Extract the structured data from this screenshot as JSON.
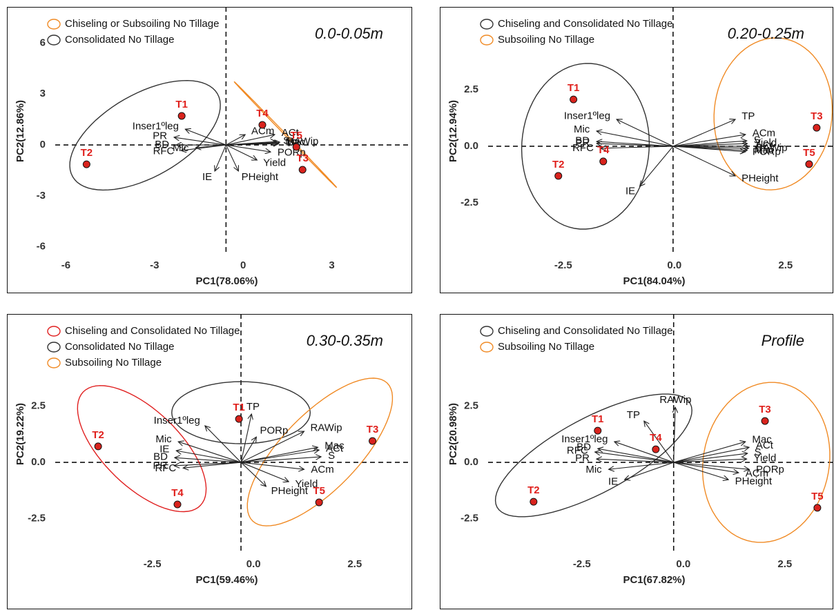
{
  "chart_data": [
    {
      "type": "biplot",
      "subtitle": "0.0-0.05m",
      "x_label": "PC1(78.06%)",
      "y_label": "PC2(12.86%)",
      "xlim": [
        -6.36,
        5.72
      ],
      "ylim": [
        -6.5,
        8.13
      ],
      "xticks": [
        -6,
        -3,
        0,
        3
      ],
      "yticks": [
        -6,
        -3,
        0,
        3,
        6
      ],
      "reference_lines": {
        "x": -0.58,
        "y": 0
      },
      "points": {
        "color": "#d9231d",
        "labels": [
          "T1",
          "T2",
          "T3",
          "T4",
          "T5"
        ],
        "x": [
          -2.08,
          -5.3,
          2.01,
          0.65,
          1.8
        ],
        "y": [
          1.71,
          -1.14,
          -1.46,
          1.18,
          -0.12
        ]
      },
      "vectors": {
        "labels": [
          "Inser1ºleg",
          "PR",
          "BD",
          "RFC",
          "Mic",
          "IE",
          "ACm",
          "ACt",
          "S",
          "Mac",
          "TP",
          "RAWip",
          "PORp",
          "Yield",
          "PHeight"
        ],
        "x": [
          -1.96,
          -2.34,
          -2.27,
          -2.1,
          -1.61,
          -0.96,
          0.07,
          1.07,
          1.12,
          1.19,
          1.21,
          1.24,
          0.93,
          0.47,
          -0.16
        ],
        "y": [
          0.93,
          0.45,
          0,
          -0.33,
          -0.16,
          -1.54,
          0.61,
          0.61,
          0.2,
          0.12,
          0.08,
          0.16,
          -0.41,
          -0.89,
          -1.54
        ]
      },
      "groups": [
        {
          "name": "Chiseling or Subsoiling No Tillage",
          "color": "#f08a24",
          "center": [
            1.43,
            0.61
          ],
          "axis1": [
            1.52,
            -2.76
          ],
          "axis2": [
            -0.82,
            1.42
          ]
        },
        {
          "name": "Consolidated No Tillage",
          "color": "#333333",
          "center": [
            -3.32,
            0.57
          ],
          "axis1": [
            2.45,
            2.44
          ],
          "axis2": [
            0.7,
            -2.11
          ]
        }
      ]
    },
    {
      "type": "biplot",
      "subtitle": "0.20-0.25m",
      "x_label": "PC1(84.04%)",
      "y_label": "PC2(12.94%)",
      "xlim": [
        -4.19,
        3.59
      ],
      "ylim": [
        -4.82,
        6.16
      ],
      "xticks": [
        -2.5,
        {
          "value": 0,
          "label": "0.0"
        },
        2.5
      ],
      "yticks": [
        -2.5,
        {
          "value": 0,
          "label": "0.0"
        },
        2.5
      ],
      "reference_lines": {
        "x": -0.03,
        "y": 0
      },
      "points": {
        "color": "#d9231d",
        "labels": [
          "T1",
          "T2",
          "T3",
          "T4",
          "T5"
        ],
        "x": [
          -2.27,
          -2.61,
          3.2,
          -1.6,
          3.03
        ],
        "y": [
          2.07,
          -1.31,
          0.82,
          -0.67,
          -0.79
        ]
      },
      "vectors": {
        "labels": [
          "Inser1ºleg",
          "Mic",
          "BD",
          "PR",
          "RFC",
          "IE",
          "TP",
          "ACm",
          "S",
          "Yield",
          "ACt",
          "RAWip",
          "PORp",
          "Mac",
          "PHeight"
        ],
        "x": [
          -1.3,
          -1.75,
          -1.75,
          -1.75,
          -1.66,
          -0.78,
          1.37,
          1.6,
          1.63,
          1.64,
          1.67,
          1.67,
          1.6,
          1.64,
          1.37
        ],
        "y": [
          1.19,
          0.67,
          0.21,
          0.12,
          -0.09,
          -1.77,
          1.19,
          0.52,
          0.24,
          0.12,
          0,
          -0.09,
          -0.24,
          -0.18,
          -1.31
        ]
      },
      "groups": [
        {
          "name": "Chiseling and Consolidated No Tillage",
          "color": "#333333",
          "center": [
            -2.0,
            0
          ],
          "axis1": [
            0.12,
            3.66
          ],
          "axis2": [
            1.43,
            -0.18
          ]
        },
        {
          "name": "Subsoiling No Tillage",
          "color": "#f08a24",
          "center": [
            2.22,
            1.43
          ],
          "axis1": [
            0.16,
            3.35
          ],
          "axis2": [
            1.32,
            -0.24
          ]
        }
      ]
    },
    {
      "type": "biplot",
      "subtitle": "0.30-0.35m",
      "x_label": "PC1(59.46%)",
      "y_label": "PC2(19.22%)",
      "xlim": [
        -4.9,
        3.92
      ],
      "ylim": [
        -4.08,
        6.6
      ],
      "xticks": [
        -2.5,
        {
          "value": 0,
          "label": "0.0"
        },
        2.5
      ],
      "yticks": [
        -2.5,
        {
          "value": 0,
          "label": "0.0"
        },
        2.5
      ],
      "reference_lines": {
        "x": -0.31,
        "y": 0
      },
      "points": {
        "color": "#d9231d",
        "labels": [
          "T1",
          "T2",
          "T3",
          "T4",
          "T5"
        ],
        "x": [
          -0.36,
          -3.84,
          2.94,
          -1.88,
          1.62
        ],
        "y": [
          1.93,
          0.71,
          0.95,
          -1.87,
          -1.78
        ]
      },
      "vectors": {
        "labels": [
          "Inser1ºleg",
          "TP",
          "PORp",
          "RAWip",
          "Mac",
          "ACt",
          "S",
          "ACm",
          "Yield",
          "PHeight",
          "Mic",
          "IE",
          "BD",
          "PR",
          "RFC"
        ],
        "x": [
          -1.2,
          -0.05,
          0.07,
          1.25,
          1.59,
          1.62,
          1.67,
          1.25,
          0.87,
          0.31,
          -1.86,
          -1.91,
          -1.95,
          -1.96,
          -1.74
        ],
        "y": [
          1.63,
          2.15,
          1.13,
          1.38,
          0.67,
          0.55,
          0.25,
          -0.31,
          -0.86,
          -1.07,
          0.92,
          0.52,
          0.21,
          -0.15,
          -0.25
        ]
      },
      "groups": [
        {
          "name": "Chiseling and Consolidated No Tillage",
          "color": "#e02020",
          "center": [
            -2.76,
            0.61
          ],
          "axis1": [
            1.45,
            -2.52
          ],
          "axis2": [
            -0.65,
            -1.23
          ]
        },
        {
          "name": "Consolidated No Tillage",
          "color": "#333333",
          "center": [
            -0.31,
            2.21
          ],
          "axis1": [
            1.71,
            0
          ],
          "axis2": [
            0,
            1.38
          ]
        },
        {
          "name": "Subsoiling No Tillage",
          "color": "#f08a24",
          "center": [
            1.64,
            0.46
          ],
          "axis1": [
            1.66,
            3.07
          ],
          "axis2": [
            0.68,
            -1.17
          ]
        }
      ]
    },
    {
      "type": "biplot",
      "subtitle": "Profile",
      "x_label": "PC1(67.82%)",
      "y_label": "PC2(20.98%)",
      "xlim": [
        -4.81,
        3.71
      ],
      "ylim": [
        -4.08,
        6.6
      ],
      "xticks": [
        -2.5,
        {
          "value": 0,
          "label": "0.0"
        },
        2.5
      ],
      "yticks": [
        -2.5,
        {
          "value": 0,
          "label": "0.0"
        },
        2.5
      ],
      "reference_lines": {
        "x": -0.24,
        "y": 0
      },
      "points": {
        "color": "#d9231d",
        "labels": [
          "T1",
          "T2",
          "T3",
          "T4",
          "T5"
        ],
        "x": [
          -2.11,
          -3.69,
          2.01,
          -0.68,
          3.3
        ],
        "y": [
          1.41,
          -1.75,
          1.84,
          0.58,
          -2.02
        ]
      },
      "vectors": {
        "labels": [
          "TP",
          "RAWip",
          "Inser1ºleg",
          "BD",
          "RFC",
          "PR",
          "Mic",
          "IE",
          "Mac",
          "ACt",
          "S",
          "Yield",
          "PORp",
          "ACm",
          "PHeight"
        ],
        "x": [
          -0.97,
          -0.2,
          -1.7,
          -2.11,
          -2.18,
          -2.14,
          -1.84,
          -1.45,
          1.53,
          1.62,
          1.58,
          1.56,
          1.62,
          1.36,
          1.11
        ],
        "y": [
          1.84,
          2.45,
          0.92,
          0.61,
          0.46,
          0.15,
          -0.31,
          -0.77,
          0.92,
          0.67,
          0.4,
          0.15,
          -0.31,
          -0.46,
          -0.77
        ]
      },
      "groups": [
        {
          "name": "Chiseling and Consolidated No Tillage",
          "color": "#333333",
          "center": [
            -2.21,
            0.31
          ],
          "axis1": [
            2.38,
            2.3
          ],
          "axis2": [
            0.44,
            -1.47
          ]
        },
        {
          "name": "Subsoiling No Tillage",
          "color": "#f08a24",
          "center": [
            2.04,
            0
          ],
          "axis1": [
            0.34,
            3.53
          ],
          "axis2": [
            1.53,
            -0.46
          ]
        }
      ]
    }
  ]
}
